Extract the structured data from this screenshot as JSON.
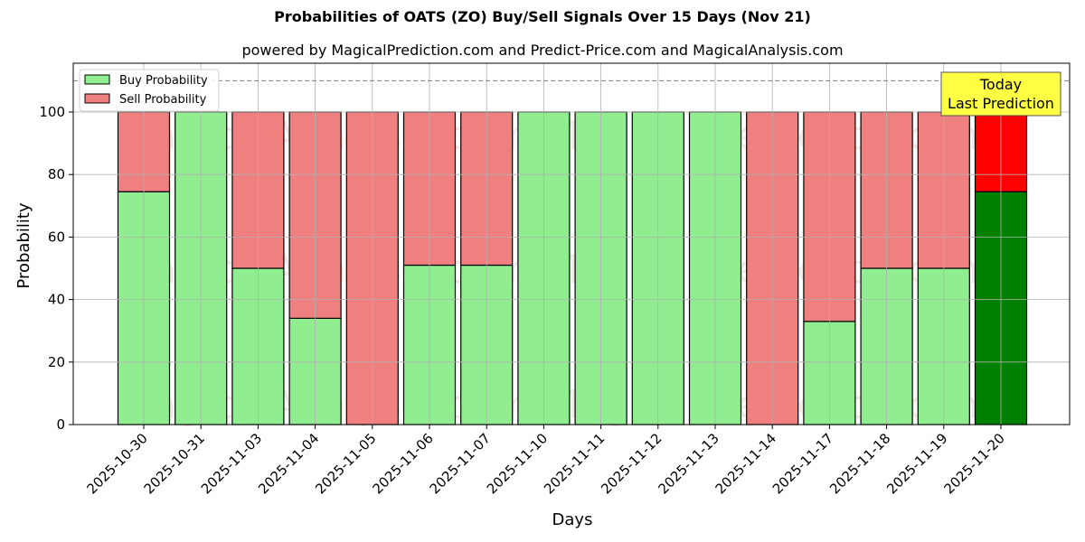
{
  "chart_data": {
    "type": "bar",
    "stacked": true,
    "title": "Probabilities of OATS (ZO) Buy/Sell Signals Over 15 Days (Nov 21)",
    "subtitle": "powered by MagicalPrediction.com and Predict-Price.com and MagicalAnalysis.com",
    "xlabel": "Days",
    "ylabel": "Probability",
    "ylim": [
      0,
      115
    ],
    "yticks": [
      0,
      20,
      40,
      60,
      80,
      100
    ],
    "grid": true,
    "legend_position": "upper left",
    "reference_line": {
      "y": 110,
      "style": "dashed",
      "color": "#808080"
    },
    "categories": [
      "2025-10-30",
      "2025-10-31",
      "2025-11-03",
      "2025-11-04",
      "2025-11-05",
      "2025-11-06",
      "2025-11-07",
      "2025-11-10",
      "2025-11-11",
      "2025-11-12",
      "2025-11-13",
      "2025-11-14",
      "2025-11-17",
      "2025-11-18",
      "2025-11-19",
      "2025-11-20"
    ],
    "series": [
      {
        "name": "Buy Probability",
        "color": "#90ee90",
        "values": [
          74.5,
          100,
          50,
          34,
          0,
          51,
          51,
          100,
          100,
          100,
          100,
          0,
          33,
          50,
          50,
          74.5
        ]
      },
      {
        "name": "Sell Probability",
        "color": "#f08080",
        "values": [
          25.5,
          0,
          50,
          66,
          100,
          49,
          49,
          0,
          0,
          0,
          0,
          100,
          67,
          50,
          50,
          25.5
        ]
      }
    ],
    "highlight": {
      "index": 15,
      "buy_color": "#008000",
      "sell_color": "#ff0000"
    },
    "annotation": {
      "lines": [
        "Today",
        "Last Prediction"
      ],
      "background": "#ffff44"
    },
    "watermarks": [
      "MagicalAnalysis.com",
      "MagicalPrediction.com"
    ]
  }
}
